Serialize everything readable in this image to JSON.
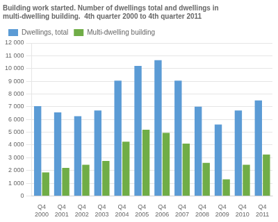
{
  "chart_data": {
    "type": "bar",
    "title": "Building work started. Number of dwellings total and dwellings in\nmulti-dwelling building.  4th quarter 2000 to 4th quarter 2011",
    "categories": [
      "Q4\n2000",
      "Q4\n2001",
      "Q4\n2002",
      "Q4\n2003",
      "Q4\n2004",
      "Q4\n2005",
      "Q4\n2006",
      "Q4\n2007",
      "Q4\n2008",
      "Q4\n2009",
      "Q4\n2010",
      "Q4\n2011"
    ],
    "series": [
      {
        "name": "Dwellings, total",
        "color": "#5b9bd5",
        "values": [
          7050,
          6550,
          6250,
          6700,
          9050,
          10200,
          10650,
          9050,
          7000,
          5600,
          6700,
          7500
        ]
      },
      {
        "name": "Multi-dwelling building",
        "color": "#70ad47",
        "values": [
          1850,
          2200,
          2450,
          2750,
          4250,
          5200,
          4950,
          4100,
          2600,
          1300,
          2450,
          3250
        ]
      }
    ],
    "ylim": [
      0,
      12000
    ],
    "yticks": [
      0,
      {
        "value": 1000,
        "label": "1 000"
      },
      {
        "value": 2000,
        "label": "2 000"
      },
      {
        "value": 3000,
        "label": "3 000"
      },
      {
        "value": 4000,
        "label": "4 000"
      },
      {
        "value": 5000,
        "label": "5 000"
      },
      {
        "value": 6000,
        "label": "6 000"
      },
      {
        "value": 7000,
        "label": "7 000"
      },
      {
        "value": 8000,
        "label": "8 000"
      },
      {
        "value": 9000,
        "label": "9 000"
      },
      {
        "value": 10000,
        "label": "10 000"
      },
      {
        "value": 11000,
        "label": "11 000"
      },
      {
        "value": 12000,
        "label": "12 000"
      }
    ],
    "grid": true,
    "legend": "upper left"
  }
}
